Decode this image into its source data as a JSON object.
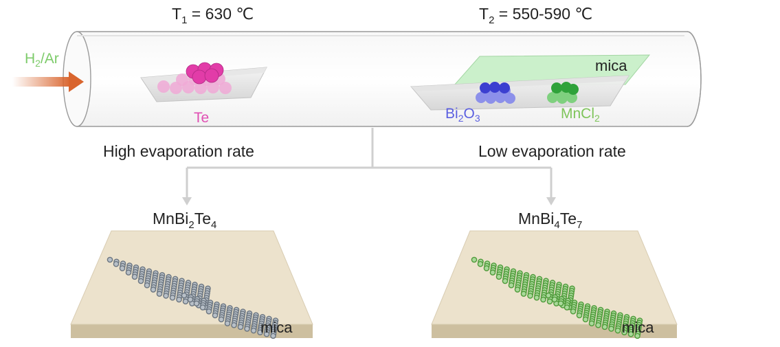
{
  "header": {
    "t1": {
      "main": "T",
      "sub": "1",
      "rest": " = 630 ℃"
    },
    "t2": {
      "main": "T",
      "sub": "2",
      "rest": " = 550-590 ℃"
    }
  },
  "gas": {
    "main": "H",
    "sub": "2",
    "rest": "/Ar"
  },
  "sources": {
    "te": "Te",
    "bi2o3": {
      "a": "Bi",
      "a_sub": "2",
      "b": "O",
      "b_sub": "3"
    },
    "mncl2": {
      "a": "MnCl",
      "a_sub": "2"
    },
    "mica_substrate": "mica"
  },
  "rates": {
    "high": "High evaporation rate",
    "low": "Low evaporation rate"
  },
  "products": {
    "left": {
      "p1": "MnBi",
      "s1": "2",
      "p2": "Te",
      "s2": "4",
      "substrate": "mica"
    },
    "right": {
      "p1": "MnBi",
      "s1": "4",
      "p2": "Te",
      "s2": "7",
      "substrate": "mica"
    }
  },
  "colors": {
    "gas_text": "#7dcb6a",
    "arrow": "#d9652e",
    "te": "#e23ca8",
    "te_light": "#f0a9d6",
    "bi2o3": "#3b3fd0",
    "bi2o3_text": "#5b5fe0",
    "mncl2": "#2fa23a",
    "mncl2_text": "#7ec45a",
    "mica_sheet": "#c9f0c9",
    "substrate": "#ece2cc",
    "crystal_left": "#6b7580",
    "crystal_right": "#4f9a3a"
  }
}
